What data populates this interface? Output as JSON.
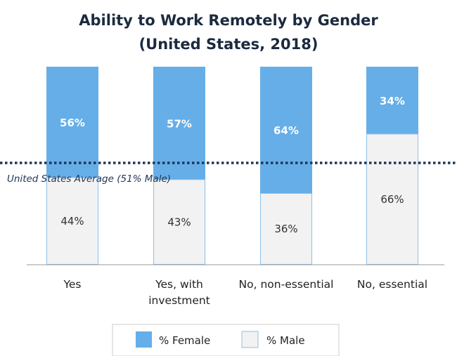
{
  "chart_data": {
    "type": "bar",
    "stacked": true,
    "title_lines": [
      "Ability to Work Remotely by Gender",
      "(United States, 2018)"
    ],
    "categories": [
      [
        "Yes"
      ],
      [
        "Yes, with",
        "investment"
      ],
      [
        "No, non-essential"
      ],
      [
        "No, essential"
      ]
    ],
    "series": [
      {
        "name": "% Female",
        "values": [
          56,
          57,
          64,
          34
        ],
        "labels": [
          "56%",
          "57%",
          "64%",
          "34%"
        ]
      },
      {
        "name": "% Male",
        "values": [
          44,
          43,
          36,
          66
        ],
        "labels": [
          "44%",
          "43%",
          "36%",
          "66%"
        ]
      }
    ],
    "ylim": [
      0,
      100
    ],
    "reference_line": {
      "label": "United States Average (51% Male)",
      "value": 51
    },
    "legend_position": "bottom",
    "grid": false
  },
  "colors": {
    "female": "#66aee8",
    "male": "#f2f2f2",
    "male_border": "#8cc0ea",
    "reference_line": "#1f3556",
    "axis": "#999999",
    "title": "#1b2a3f"
  }
}
